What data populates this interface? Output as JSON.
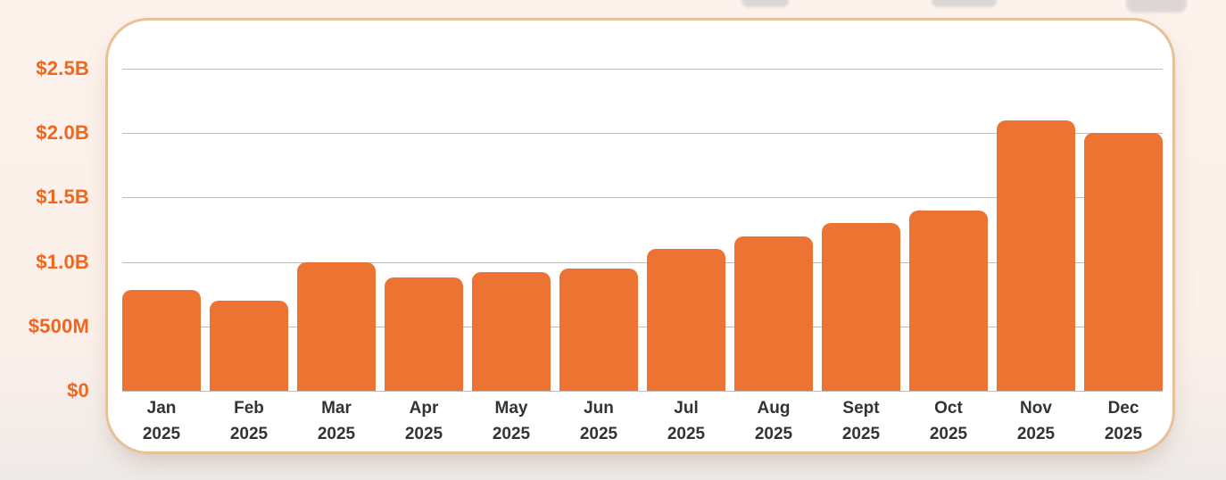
{
  "colors": {
    "page_bg_top": "#fdf2ec",
    "page_bg_bottom": "#eeeae8",
    "card_bg": "#ffffff",
    "card_border": "#e8c198",
    "gridline": "#bcbcbc",
    "bar_fill": "#ec7331",
    "y_label": "#f0661f",
    "x_label": "#333333",
    "cutoff_shape": "#d7d2d1"
  },
  "chart_data": {
    "type": "bar",
    "title": "",
    "categories": [
      "Jan",
      "Feb",
      "Mar",
      "Apr",
      "May",
      "Jun",
      "Jul",
      "Aug",
      "Sept",
      "Oct",
      "Nov",
      "Dec"
    ],
    "category_sublabel": "2025",
    "values_usd_billions": [
      0.78,
      0.7,
      1.0,
      0.88,
      0.92,
      0.95,
      1.1,
      1.2,
      1.3,
      1.4,
      2.1,
      2.0
    ],
    "ylim": [
      0,
      2.5
    ],
    "ytick_labels_bottom_to_top": [
      "$0",
      "$500M",
      "$1.0B",
      "$1.5B",
      "$2.0B",
      "$2.5B"
    ],
    "grid": "horizontal",
    "legend": "none",
    "bar_corner": "rounded-top"
  }
}
